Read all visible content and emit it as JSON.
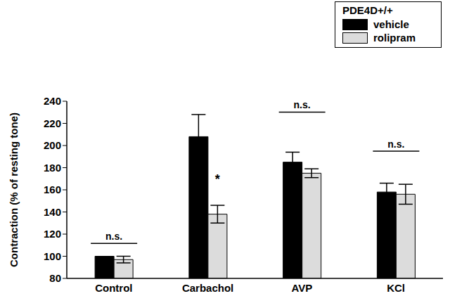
{
  "chart_data": {
    "type": "bar",
    "y_label": "Contraction (% of resting tone)",
    "legend_title": "PDE4D+/+",
    "legend": "upper right",
    "categories": [
      "Control",
      "Carbachol",
      "AVP",
      "KCl"
    ],
    "series": [
      {
        "name": "vehicle",
        "color": "#000000",
        "values": [
          100,
          208,
          185,
          158
        ],
        "errors": [
          0,
          20,
          9,
          8
        ]
      },
      {
        "name": "rolipram",
        "color": "#dcdcdc",
        "values": [
          97,
          138,
          175,
          156
        ],
        "errors": [
          3,
          8,
          4,
          9
        ]
      }
    ],
    "ylim": [
      80,
      240
    ],
    "yticks": [
      80,
      100,
      120,
      140,
      160,
      180,
      200,
      220,
      240
    ],
    "annotations": [
      {
        "category": "Control",
        "text": "n.s."
      },
      {
        "category": "Carbachol",
        "series": "rolipram",
        "text": "*"
      },
      {
        "category": "AVP",
        "text": "n.s."
      },
      {
        "category": "KCl",
        "text": "n.s."
      }
    ]
  }
}
